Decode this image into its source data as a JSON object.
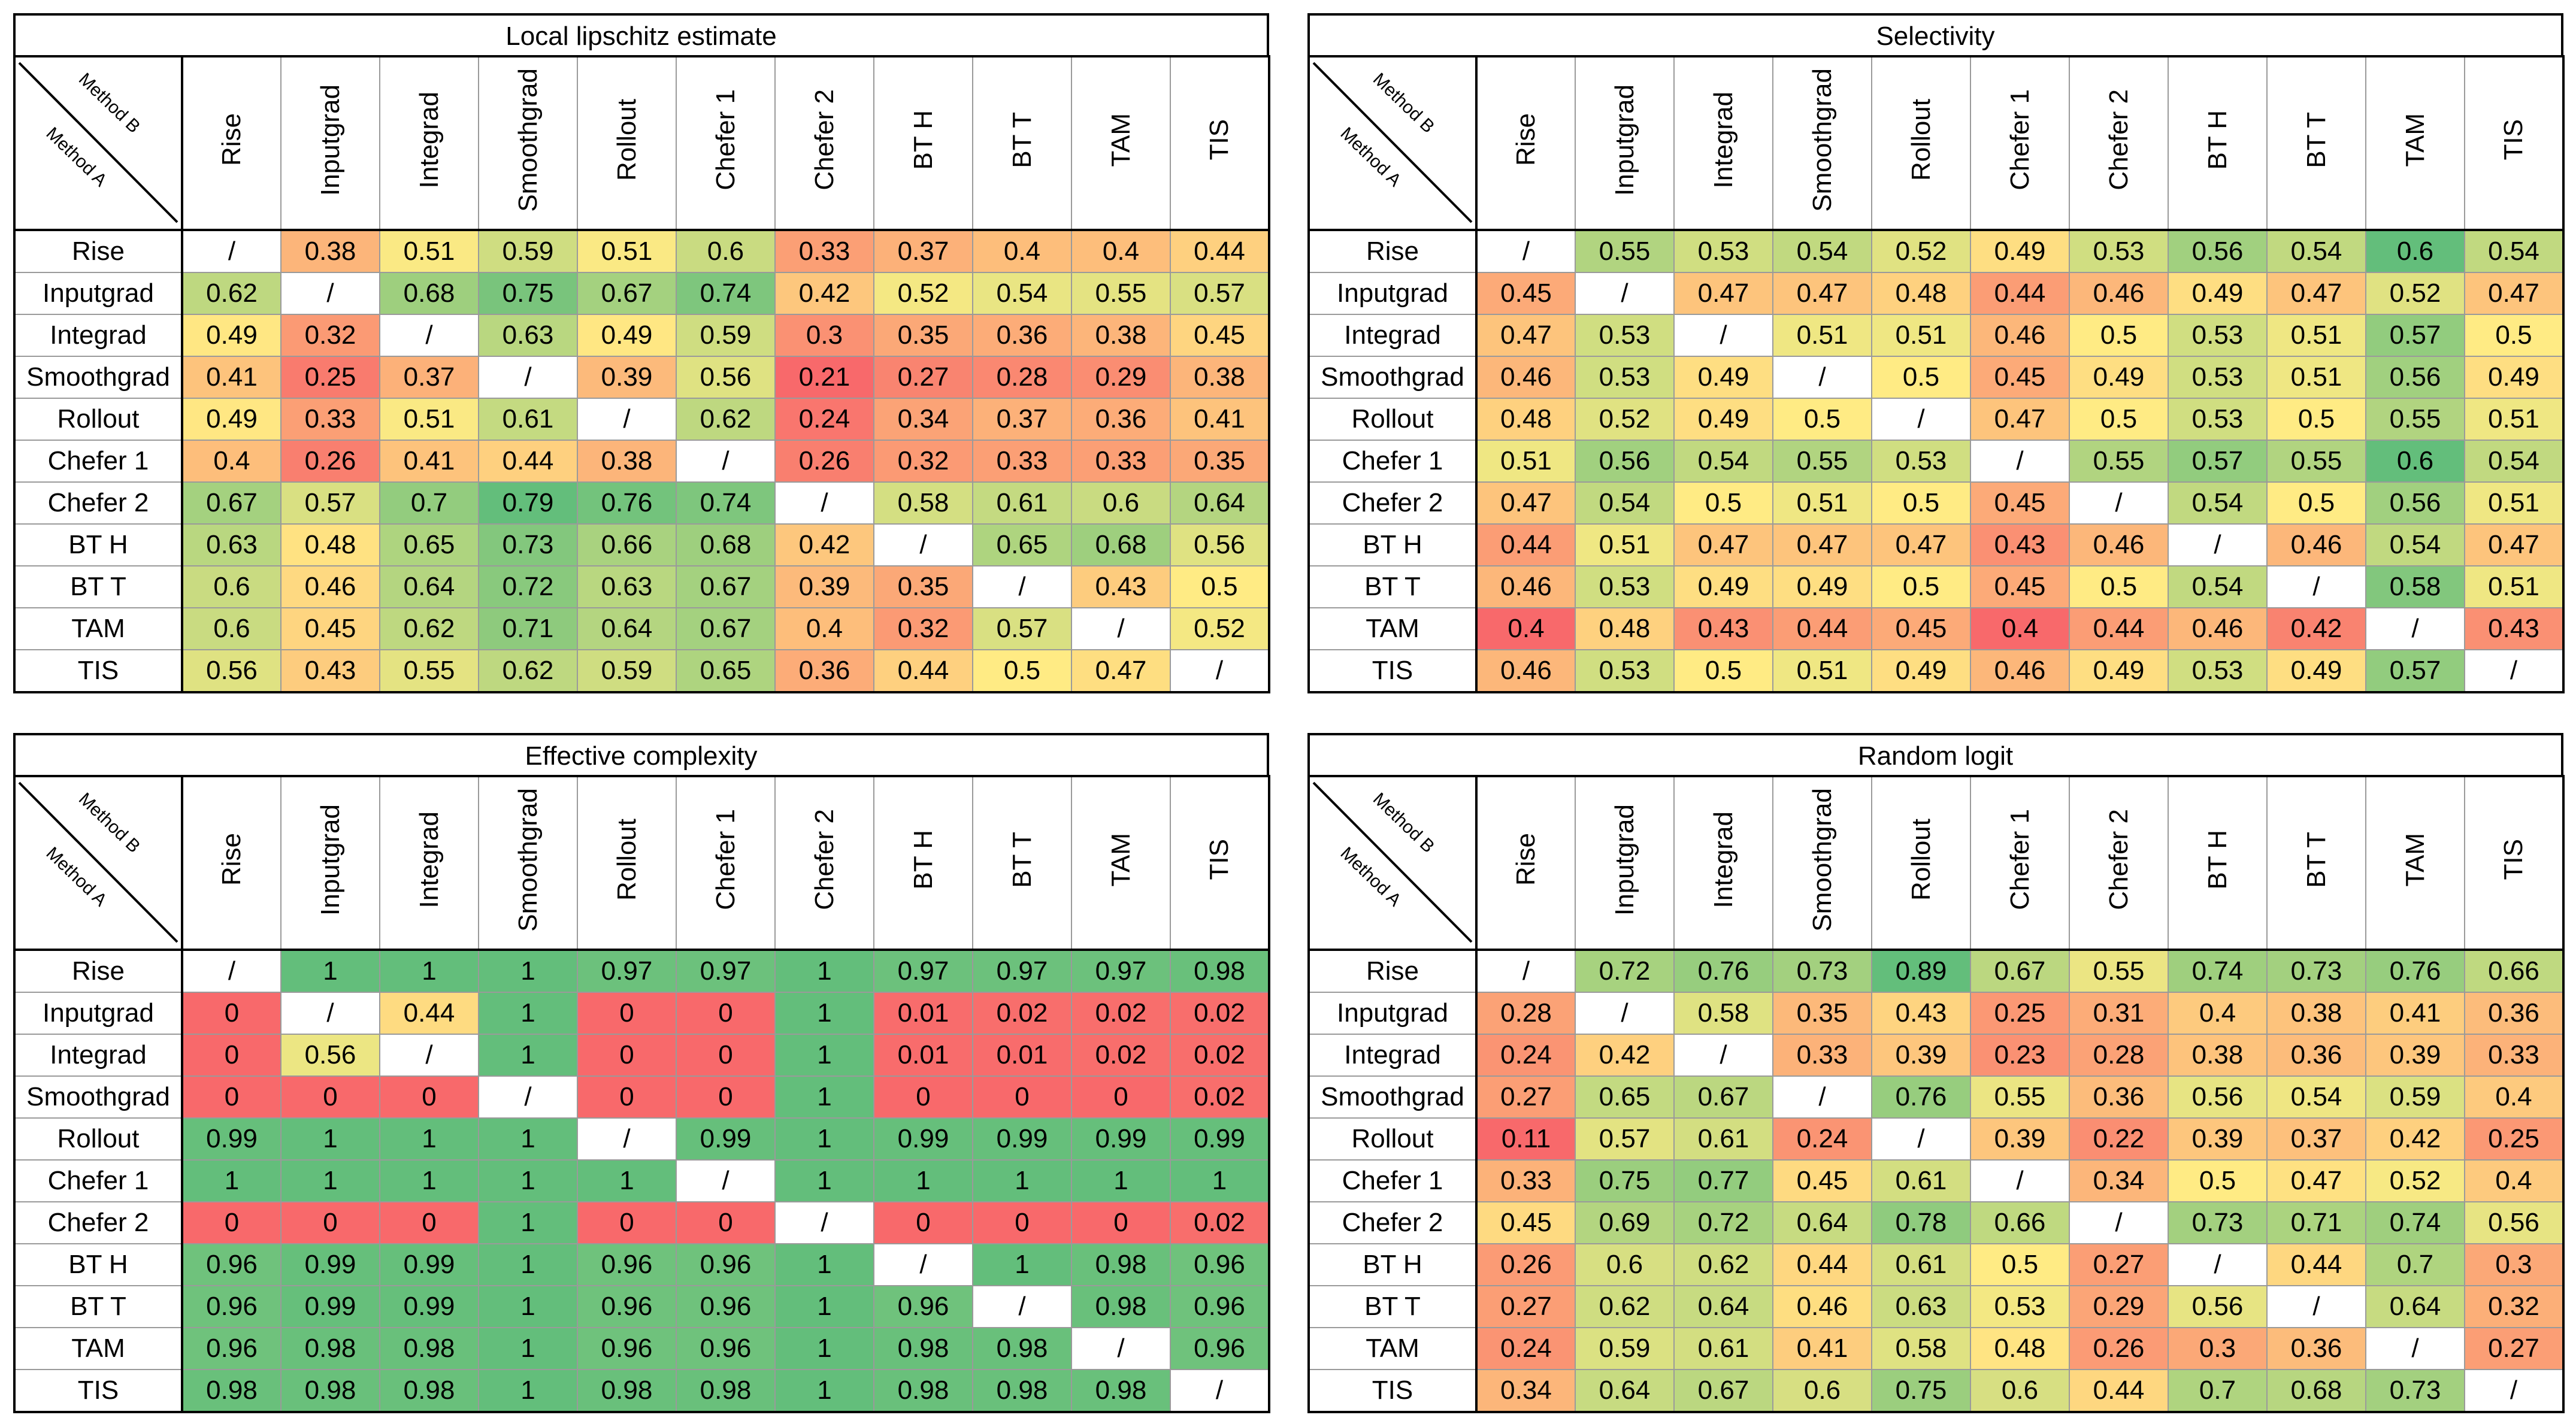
{
  "corner": {
    "method_b": "Method B",
    "method_a": "Method A"
  },
  "methods": [
    "Rise",
    "Inputgrad",
    "Integrad",
    "Smoothgrad",
    "Rollout",
    "Chefer 1",
    "Chefer 2",
    "BT H",
    "BT T",
    "TAM",
    "TIS"
  ],
  "diagonal_mark": "/",
  "colors": {
    "low": "#f8696b",
    "mid": "#ffeb84",
    "high": "#63be7b",
    "diag": "#ffffff"
  },
  "chart_data": [
    {
      "type": "heatmap",
      "title": "Local lipschitz estimate",
      "xlabel": "Method B",
      "ylabel": "Method A",
      "values": [
        [
          null,
          "0.38",
          "0.51",
          "0.59",
          "0.51",
          "0.6",
          "0.33",
          "0.37",
          "0.4",
          "0.4",
          "0.44"
        ],
        [
          "0.62",
          null,
          "0.68",
          "0.75",
          "0.67",
          "0.74",
          "0.42",
          "0.52",
          "0.54",
          "0.55",
          "0.57"
        ],
        [
          "0.49",
          "0.32",
          null,
          "0.63",
          "0.49",
          "0.59",
          "0.3",
          "0.35",
          "0.36",
          "0.38",
          "0.45"
        ],
        [
          "0.41",
          "0.25",
          "0.37",
          null,
          "0.39",
          "0.56",
          "0.21",
          "0.27",
          "0.28",
          "0.29",
          "0.38"
        ],
        [
          "0.49",
          "0.33",
          "0.51",
          "0.61",
          null,
          "0.62",
          "0.24",
          "0.34",
          "0.37",
          "0.36",
          "0.41"
        ],
        [
          "0.4",
          "0.26",
          "0.41",
          "0.44",
          "0.38",
          null,
          "0.26",
          "0.32",
          "0.33",
          "0.33",
          "0.35"
        ],
        [
          "0.67",
          "0.57",
          "0.7",
          "0.79",
          "0.76",
          "0.74",
          null,
          "0.58",
          "0.61",
          "0.6",
          "0.64"
        ],
        [
          "0.63",
          "0.48",
          "0.65",
          "0.73",
          "0.66",
          "0.68",
          "0.42",
          null,
          "0.65",
          "0.68",
          "0.56"
        ],
        [
          "0.6",
          "0.46",
          "0.64",
          "0.72",
          "0.63",
          "0.67",
          "0.39",
          "0.35",
          null,
          "0.43",
          "0.5"
        ],
        [
          "0.6",
          "0.45",
          "0.62",
          "0.71",
          "0.64",
          "0.67",
          "0.4",
          "0.32",
          "0.57",
          null,
          "0.52"
        ],
        [
          "0.56",
          "0.43",
          "0.55",
          "0.62",
          "0.59",
          "0.65",
          "0.36",
          "0.44",
          "0.5",
          "0.47",
          null
        ]
      ]
    },
    {
      "type": "heatmap",
      "title": "Selectivity",
      "xlabel": "Method B",
      "ylabel": "Method A",
      "values": [
        [
          null,
          "0.55",
          "0.53",
          "0.54",
          "0.52",
          "0.49",
          "0.53",
          "0.56",
          "0.54",
          "0.6",
          "0.54"
        ],
        [
          "0.45",
          null,
          "0.47",
          "0.47",
          "0.48",
          "0.44",
          "0.46",
          "0.49",
          "0.47",
          "0.52",
          "0.47"
        ],
        [
          "0.47",
          "0.53",
          null,
          "0.51",
          "0.51",
          "0.46",
          "0.5",
          "0.53",
          "0.51",
          "0.57",
          "0.5"
        ],
        [
          "0.46",
          "0.53",
          "0.49",
          null,
          "0.5",
          "0.45",
          "0.49",
          "0.53",
          "0.51",
          "0.56",
          "0.49"
        ],
        [
          "0.48",
          "0.52",
          "0.49",
          "0.5",
          null,
          "0.47",
          "0.5",
          "0.53",
          "0.5",
          "0.55",
          "0.51"
        ],
        [
          "0.51",
          "0.56",
          "0.54",
          "0.55",
          "0.53",
          null,
          "0.55",
          "0.57",
          "0.55",
          "0.6",
          "0.54"
        ],
        [
          "0.47",
          "0.54",
          "0.5",
          "0.51",
          "0.5",
          "0.45",
          null,
          "0.54",
          "0.5",
          "0.56",
          "0.51"
        ],
        [
          "0.44",
          "0.51",
          "0.47",
          "0.47",
          "0.47",
          "0.43",
          "0.46",
          null,
          "0.46",
          "0.54",
          "0.47"
        ],
        [
          "0.46",
          "0.53",
          "0.49",
          "0.49",
          "0.5",
          "0.45",
          "0.5",
          "0.54",
          null,
          "0.58",
          "0.51"
        ],
        [
          "0.4",
          "0.48",
          "0.43",
          "0.44",
          "0.45",
          "0.4",
          "0.44",
          "0.46",
          "0.42",
          null,
          "0.43"
        ],
        [
          "0.46",
          "0.53",
          "0.5",
          "0.51",
          "0.49",
          "0.46",
          "0.49",
          "0.53",
          "0.49",
          "0.57",
          null
        ]
      ]
    },
    {
      "type": "heatmap",
      "title": "Effective complexity",
      "xlabel": "Method B",
      "ylabel": "Method A",
      "values": [
        [
          null,
          "1",
          "1",
          "1",
          "0.97",
          "0.97",
          "1",
          "0.97",
          "0.97",
          "0.97",
          "0.98"
        ],
        [
          "0",
          null,
          "0.44",
          "1",
          "0",
          "0",
          "1",
          "0.01",
          "0.02",
          "0.02",
          "0.02"
        ],
        [
          "0",
          "0.56",
          null,
          "1",
          "0",
          "0",
          "1",
          "0.01",
          "0.01",
          "0.02",
          "0.02"
        ],
        [
          "0",
          "0",
          "0",
          null,
          "0",
          "0",
          "1",
          "0",
          "0",
          "0",
          "0.02"
        ],
        [
          "0.99",
          "1",
          "1",
          "1",
          null,
          "0.99",
          "1",
          "0.99",
          "0.99",
          "0.99",
          "0.99"
        ],
        [
          "1",
          "1",
          "1",
          "1",
          "1",
          null,
          "1",
          "1",
          "1",
          "1",
          "1"
        ],
        [
          "0",
          "0",
          "0",
          "1",
          "0",
          "0",
          null,
          "0",
          "0",
          "0",
          "0.02"
        ],
        [
          "0.96",
          "0.99",
          "0.99",
          "1",
          "0.96",
          "0.96",
          "1",
          null,
          "1",
          "0.98",
          "0.96"
        ],
        [
          "0.96",
          "0.99",
          "0.99",
          "1",
          "0.96",
          "0.96",
          "1",
          "0.96",
          null,
          "0.98",
          "0.96"
        ],
        [
          "0.96",
          "0.98",
          "0.98",
          "1",
          "0.96",
          "0.96",
          "1",
          "0.98",
          "0.98",
          null,
          "0.96"
        ],
        [
          "0.98",
          "0.98",
          "0.98",
          "1",
          "0.98",
          "0.98",
          "1",
          "0.98",
          "0.98",
          "0.98",
          null
        ]
      ]
    },
    {
      "type": "heatmap",
      "title": "Random logit",
      "xlabel": "Method B",
      "ylabel": "Method A",
      "values": [
        [
          null,
          "0.72",
          "0.76",
          "0.73",
          "0.89",
          "0.67",
          "0.55",
          "0.74",
          "0.73",
          "0.76",
          "0.66"
        ],
        [
          "0.28",
          null,
          "0.58",
          "0.35",
          "0.43",
          "0.25",
          "0.31",
          "0.4",
          "0.38",
          "0.41",
          "0.36"
        ],
        [
          "0.24",
          "0.42",
          null,
          "0.33",
          "0.39",
          "0.23",
          "0.28",
          "0.38",
          "0.36",
          "0.39",
          "0.33"
        ],
        [
          "0.27",
          "0.65",
          "0.67",
          null,
          "0.76",
          "0.55",
          "0.36",
          "0.56",
          "0.54",
          "0.59",
          "0.4"
        ],
        [
          "0.11",
          "0.57",
          "0.61",
          "0.24",
          null,
          "0.39",
          "0.22",
          "0.39",
          "0.37",
          "0.42",
          "0.25"
        ],
        [
          "0.33",
          "0.75",
          "0.77",
          "0.45",
          "0.61",
          null,
          "0.34",
          "0.5",
          "0.47",
          "0.52",
          "0.4"
        ],
        [
          "0.45",
          "0.69",
          "0.72",
          "0.64",
          "0.78",
          "0.66",
          null,
          "0.73",
          "0.71",
          "0.74",
          "0.56"
        ],
        [
          "0.26",
          "0.6",
          "0.62",
          "0.44",
          "0.61",
          "0.5",
          "0.27",
          null,
          "0.44",
          "0.7",
          "0.3"
        ],
        [
          "0.27",
          "0.62",
          "0.64",
          "0.46",
          "0.63",
          "0.53",
          "0.29",
          "0.56",
          null,
          "0.64",
          "0.32"
        ],
        [
          "0.24",
          "0.59",
          "0.61",
          "0.41",
          "0.58",
          "0.48",
          "0.26",
          "0.3",
          "0.36",
          null,
          "0.27"
        ],
        [
          "0.34",
          "0.64",
          "0.67",
          "0.6",
          "0.75",
          "0.6",
          "0.44",
          "0.7",
          "0.68",
          "0.73",
          null
        ]
      ]
    }
  ]
}
